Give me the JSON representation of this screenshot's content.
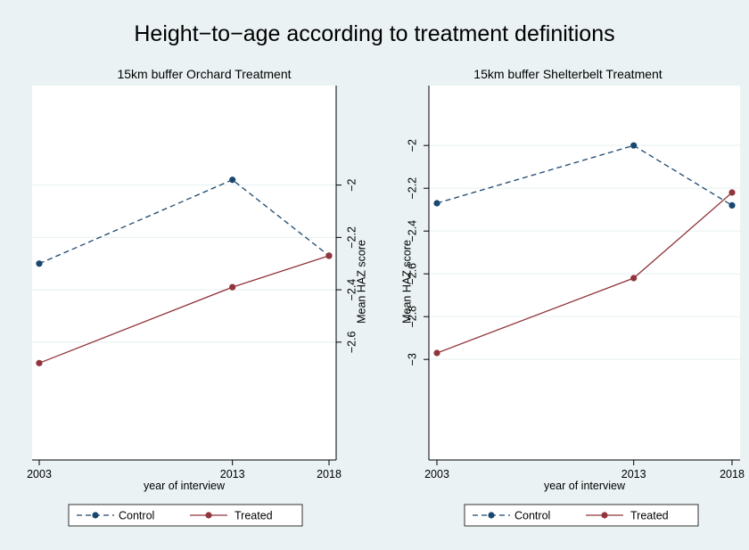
{
  "figure": {
    "title": "Height−to−age according to treatment definitions"
  },
  "colors": {
    "background": "#eaf2f3",
    "plot_background": "#ffffff",
    "control": "#1a476f",
    "treated": "#90353b",
    "grid": "#eaf2f3"
  },
  "chart_data": [
    {
      "type": "line",
      "title": "15km buffer Orchard Treatment",
      "xlabel": "year of interview",
      "ylabel": "Mean HAZ score",
      "y_axis_side": "right",
      "x": [
        2003,
        2013,
        2018
      ],
      "x_ticks": [
        "2003",
        "2013",
        "2018"
      ],
      "xlim": [
        2003,
        2018
      ],
      "ylim": [
        -3.05,
        -1.62
      ],
      "y_ticks": [
        "−2",
        "−2.2",
        "−2.4",
        "−2.6"
      ],
      "y_tick_values": [
        -2,
        -2.2,
        -2.4,
        -2.6
      ],
      "grid": true,
      "legend_position": "bottom",
      "series": [
        {
          "name": "Control",
          "style": "dashed",
          "values": [
            -2.3,
            -1.98,
            -2.27
          ]
        },
        {
          "name": "Treated",
          "style": "solid",
          "values": [
            -2.68,
            -2.39,
            -2.27
          ]
        }
      ]
    },
    {
      "type": "line",
      "title": "15km buffer Shelterbelt Treatment",
      "xlabel": "year of interview",
      "ylabel": "Mean HAZ score",
      "y_axis_side": "left",
      "x": [
        2003,
        2013,
        2018
      ],
      "x_ticks": [
        "2003",
        "2013",
        "2018"
      ],
      "xlim": [
        2003,
        2018
      ],
      "ylim": [
        -3.47,
        -1.72
      ],
      "y_ticks": [
        "−2",
        "−2.2",
        "−2.4",
        "−2.6",
        "−2.8",
        "−3"
      ],
      "y_tick_values": [
        -2,
        -2.2,
        -2.4,
        -2.6,
        -2.8,
        -3
      ],
      "grid": true,
      "legend_position": "bottom",
      "series": [
        {
          "name": "Control",
          "style": "dashed",
          "values": [
            -2.27,
            -2.0,
            -2.28
          ]
        },
        {
          "name": "Treated",
          "style": "solid",
          "values": [
            -2.97,
            -2.62,
            -2.22
          ]
        }
      ]
    }
  ]
}
